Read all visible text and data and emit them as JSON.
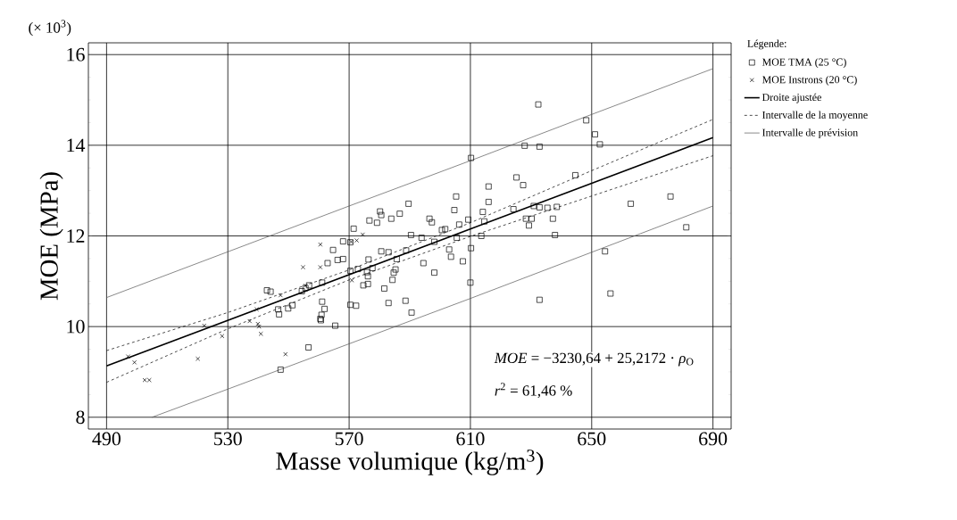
{
  "chart_data": {
    "type": "scatter",
    "xlabel": "Masse volumique (kg/m$^{3}$)",
    "ylabel": "MOE (MPa)",
    "legend_title": "Légende:",
    "annotations": [
      "(× 10$^{3}$)",
      "*MOE* = −3230,64 + 25,2172 · *ρ*$_{O}$",
      "*r*$^{2}$ = 61,46 %"
    ],
    "xlim": [
      484,
      696
    ],
    "ylim": [
      7.74,
      16.26
    ],
    "xticks": [
      490,
      530,
      570,
      610,
      650,
      690
    ],
    "yticks": [
      8,
      10,
      12,
      14,
      16
    ],
    "grid": true,
    "legend": "right",
    "series": [
      {
        "name": "MOE TMA (25 °C)",
        "type": "scatter",
        "marker": "square",
        "color": "#000000",
        "x": [
          632.4,
          648.2,
          651.1,
          652.7,
          627.9,
          632.8,
          610.2,
          644.6,
          625.2,
          627.4,
          616.0,
          605.3,
          676.0,
          616.0,
          589.6,
          662.9,
          624.2,
          630.9,
          632.8,
          635.4,
          638.5,
          604.7,
          614.1,
          580.2,
          580.6,
          586.7,
          579.2,
          583.9,
          576.7,
          596.5,
          609.3,
          597.3,
          606.3,
          614.6,
          628.3,
          630.2,
          629.3,
          637.2,
          571.5,
          681.2,
          600.6,
          601.7,
          590.4,
          593.9,
          613.6,
          637.9,
          605.5,
          598.1,
          568.0,
          570.4,
          564.7,
          603.0,
          580.6,
          583.0,
          588.8,
          603.6,
          610.2,
          654.4,
          576.4,
          585.7,
          568.0,
          562.9,
          566.2,
          594.5,
          607.5,
          577.7,
          572.9,
          570.4,
          575.9,
          585.3,
          584.7,
          598.1,
          576.2,
          584.3,
          610.0,
          574.7,
          576.2,
          561.1,
          556.8,
          555.6,
          554.4,
          581.6,
          542.9,
          544.1,
          656.2,
          632.8,
          588.6,
          561.1,
          583.0,
          561.9,
          570.4,
          572.3,
          551.3,
          549.9,
          546.6,
          546.9,
          590.6,
          560.5,
          560.9,
          560.7,
          565.4,
          556.6,
          547.4
        ],
        "values": [
          14.9,
          14.55,
          14.24,
          14.02,
          13.99,
          13.97,
          13.72,
          13.34,
          13.29,
          13.12,
          13.09,
          12.87,
          12.87,
          12.75,
          12.71,
          12.71,
          12.59,
          12.66,
          12.63,
          12.62,
          12.64,
          12.57,
          12.53,
          12.54,
          12.46,
          12.49,
          12.29,
          12.38,
          12.34,
          12.38,
          12.36,
          12.3,
          12.25,
          12.32,
          12.38,
          12.38,
          12.23,
          12.38,
          12.16,
          12.19,
          12.13,
          12.15,
          12.02,
          11.96,
          12.0,
          12.02,
          11.96,
          11.87,
          11.88,
          11.86,
          11.69,
          11.7,
          11.66,
          11.64,
          11.68,
          11.54,
          11.73,
          11.66,
          11.48,
          11.49,
          11.49,
          11.4,
          11.47,
          11.4,
          11.44,
          11.29,
          11.27,
          11.23,
          11.2,
          11.26,
          11.19,
          11.19,
          11.11,
          11.03,
          10.97,
          10.91,
          10.94,
          10.97,
          10.91,
          10.85,
          10.78,
          10.84,
          10.8,
          10.77,
          10.73,
          10.59,
          10.57,
          10.55,
          10.52,
          10.39,
          10.48,
          10.46,
          10.47,
          10.4,
          10.38,
          10.27,
          10.31,
          10.17,
          10.26,
          10.14,
          10.02,
          9.54,
          9.05
        ]
      },
      {
        "name": "MOE Instrons (20 °C)",
        "type": "scatter",
        "marker": "cross",
        "color": "#000000",
        "x": [
          497.1,
          499.2,
          502.6,
          504.1,
          520.1,
          522.2,
          528.1,
          537.2,
          539.5,
          539.9,
          540.3,
          540.9,
          547.4,
          549.0,
          554.8,
          555.6,
          560.5,
          560.5,
          570.9,
          572.5,
          574.5,
          570.7
        ],
        "values": [
          9.34,
          9.21,
          8.82,
          8.82,
          9.29,
          10.02,
          9.79,
          10.12,
          10.38,
          10.06,
          10.0,
          9.84,
          10.69,
          9.39,
          11.31,
          10.9,
          11.81,
          11.31,
          11.02,
          11.9,
          12.03,
          11.87
        ]
      },
      {
        "name": "Droite ajustée",
        "type": "line",
        "line_style": "solid",
        "color": "#000000",
        "x": [
          490,
          690
        ],
        "values": [
          9.13,
          14.17
        ]
      },
      {
        "name": "Intervalle de la moyenne",
        "type": "line",
        "line_style": "dashed",
        "color": "#000000",
        "x": [
          490,
          530,
          570,
          610,
          650,
          690
        ],
        "values": [
          9.47,
          10.31,
          11.25,
          12.29,
          13.44,
          14.57
        ]
      },
      {
        "type": "line",
        "line_style": "dashed",
        "color": "#000000",
        "x": [
          490,
          530,
          570,
          610,
          650,
          690
        ],
        "values": [
          8.77,
          9.95,
          11.03,
          11.99,
          12.88,
          13.77
        ]
      },
      {
        "name": "Intervalle de prévision",
        "type": "line",
        "line_style": "solid",
        "color": "#555555",
        "x": [
          490,
          530,
          570,
          610,
          650,
          690
        ],
        "values": [
          10.64,
          11.65,
          12.66,
          13.66,
          14.68,
          15.69
        ]
      },
      {
        "type": "line",
        "line_style": "solid",
        "color": "#555555",
        "x": [
          505,
          530,
          570,
          610,
          650,
          690
        ],
        "values": [
          8.0,
          8.62,
          9.62,
          10.62,
          11.64,
          12.66
        ]
      }
    ]
  }
}
